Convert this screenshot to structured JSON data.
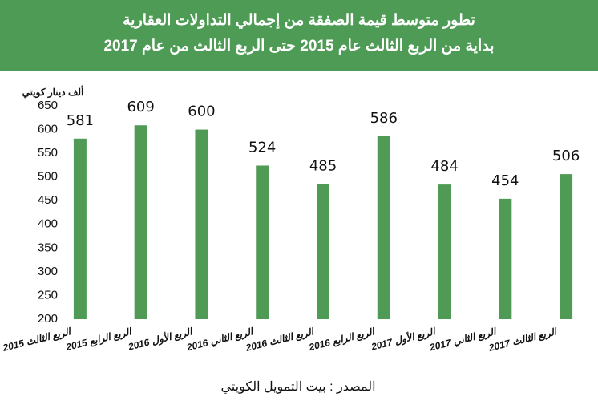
{
  "chart_data": {
    "type": "bar",
    "title": [
      "تطور متوسط قيمة الصفقة من  إجمالي التداولات العقارية",
      "بداية من الربع الثالث عام  2015 حتى الربع الثالث من عام 2017"
    ],
    "y_label": "ألف دينار كويتي",
    "source": "المصدر : بيت التمويل الكويتي",
    "categories": [
      "الربع الثالث 2015",
      "الربع الرابع 2015",
      "الربع الأول 2016",
      "الربع الثاني 2016",
      "الربع الثالث 2016",
      "الربع الرابع 2016",
      "الربع الأول 2017",
      "الربع الثاني 2017",
      "الربع الثالث 2017"
    ],
    "values": [
      581,
      609,
      600,
      524,
      485,
      586,
      484,
      454,
      506
    ],
    "color": "#4f9a55",
    "ylim": [
      200,
      650
    ],
    "yticks": [
      200,
      250,
      300,
      350,
      400,
      450,
      500,
      550,
      600,
      650
    ],
    "grid": false
  }
}
